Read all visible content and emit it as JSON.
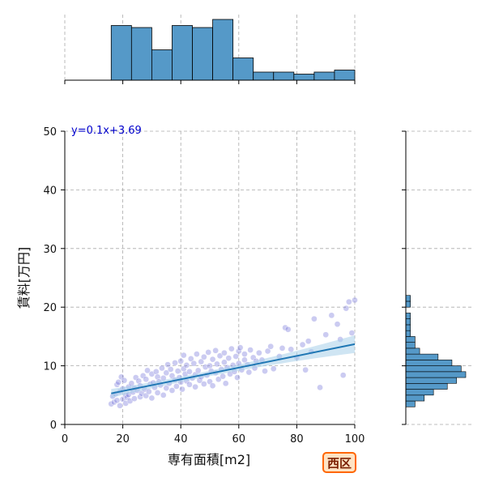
{
  "chart_data": {
    "type": "scatter",
    "xlabel": "専有面積[m2]",
    "ylabel": "賃料[万円]",
    "xlim": [
      0,
      100
    ],
    "ylim": [
      0,
      50
    ],
    "xticks": [
      0,
      20,
      40,
      60,
      80,
      100
    ],
    "yticks": [
      0,
      10,
      20,
      30,
      40,
      50
    ],
    "grid": true,
    "annotation": "y=0.1x+3.69",
    "regression": {
      "slope": 0.1,
      "intercept": 3.69,
      "x_range": [
        16,
        100
      ]
    },
    "colors": {
      "points": "#6b6bd6",
      "regression": "#1f77b4",
      "band": "#a8d0ea",
      "hist": "#5599c8"
    },
    "points": [
      [
        16,
        3.5
      ],
      [
        16.5,
        4.8
      ],
      [
        17,
        3.8
      ],
      [
        17.5,
        5.2
      ],
      [
        18,
        4.1
      ],
      [
        18,
        6.8
      ],
      [
        18.5,
        7.2
      ],
      [
        19,
        3.2
      ],
      [
        19,
        5.6
      ],
      [
        19.5,
        8.1
      ],
      [
        20,
        4.3
      ],
      [
        20,
        6.1
      ],
      [
        20.5,
        7.5
      ],
      [
        21,
        5.0
      ],
      [
        21,
        3.6
      ],
      [
        21.5,
        4.6
      ],
      [
        22,
        6.4
      ],
      [
        22,
        5.1
      ],
      [
        22.5,
        4.0
      ],
      [
        23,
        7.0
      ],
      [
        23.5,
        5.5
      ],
      [
        24,
        6.2
      ],
      [
        24,
        4.4
      ],
      [
        24.5,
        8.0
      ],
      [
        25,
        5.8
      ],
      [
        25.5,
        7.4
      ],
      [
        26,
        4.7
      ],
      [
        26,
        6.6
      ],
      [
        26.5,
        5.3
      ],
      [
        27,
        8.3
      ],
      [
        27.5,
        6.0
      ],
      [
        28,
        4.9
      ],
      [
        28,
        7.7
      ],
      [
        28.5,
        9.2
      ],
      [
        29,
        5.6
      ],
      [
        29.5,
        6.9
      ],
      [
        30,
        8.6
      ],
      [
        30,
        4.5
      ],
      [
        30.5,
        7.1
      ],
      [
        31,
        6.3
      ],
      [
        31.5,
        9.0
      ],
      [
        32,
        5.4
      ],
      [
        32,
        8.1
      ],
      [
        32.5,
        7.3
      ],
      [
        33,
        6.7
      ],
      [
        33.5,
        9.6
      ],
      [
        34,
        5.0
      ],
      [
        34,
        7.9
      ],
      [
        35,
        8.8
      ],
      [
        35,
        6.2
      ],
      [
        35.5,
        10.2
      ],
      [
        36,
        7.0
      ],
      [
        36.5,
        9.4
      ],
      [
        37,
        5.8
      ],
      [
        37,
        8.3
      ],
      [
        38,
        7.6
      ],
      [
        38,
        10.5
      ],
      [
        38.5,
        6.5
      ],
      [
        39,
        9.1
      ],
      [
        39.5,
        8.0
      ],
      [
        40,
        7.2
      ],
      [
        40,
        10.8
      ],
      [
        40.5,
        6.0
      ],
      [
        41,
        9.5
      ],
      [
        41,
        11.8
      ],
      [
        41.5,
        8.6
      ],
      [
        42,
        7.4
      ],
      [
        42,
        10.1
      ],
      [
        43,
        6.8
      ],
      [
        43,
        9.0
      ],
      [
        43.5,
        11.2
      ],
      [
        44,
        7.9
      ],
      [
        44.5,
        10.4
      ],
      [
        45,
        8.5
      ],
      [
        45,
        6.4
      ],
      [
        45.5,
        12.0
      ],
      [
        46,
        9.2
      ],
      [
        46.5,
        7.5
      ],
      [
        47,
        10.7
      ],
      [
        47,
        8.1
      ],
      [
        48,
        11.5
      ],
      [
        48,
        6.9
      ],
      [
        48.5,
        9.8
      ],
      [
        49,
        8.4
      ],
      [
        49.5,
        12.3
      ],
      [
        50,
        7.3
      ],
      [
        50,
        10.0
      ],
      [
        50.5,
        9.1
      ],
      [
        51,
        11.1
      ],
      [
        51,
        6.6
      ],
      [
        52,
        8.8
      ],
      [
        52,
        12.6
      ],
      [
        52.5,
        10.3
      ],
      [
        53,
        7.7
      ],
      [
        53.5,
        11.7
      ],
      [
        54,
        9.4
      ],
      [
        54.5,
        8.2
      ],
      [
        55,
        12.2
      ],
      [
        55,
        10.6
      ],
      [
        55.5,
        7.0
      ],
      [
        56,
        9.7
      ],
      [
        56.5,
        11.3
      ],
      [
        57,
        8.6
      ],
      [
        57.5,
        12.9
      ],
      [
        58,
        10.1
      ],
      [
        58.5,
        9.0
      ],
      [
        59,
        11.6
      ],
      [
        59.5,
        8.0
      ],
      [
        60,
        12.5
      ],
      [
        60,
        10.4
      ],
      [
        60.5,
        13.1
      ],
      [
        61,
        9.3
      ],
      [
        62,
        12.0
      ],
      [
        62,
        11.0
      ],
      [
        63,
        10.2
      ],
      [
        63.5,
        8.9
      ],
      [
        64,
        12.7
      ],
      [
        65,
        11.4
      ],
      [
        65.5,
        9.6
      ],
      [
        66,
        10.8
      ],
      [
        67,
        12.2
      ],
      [
        68,
        11.0
      ],
      [
        69,
        9.1
      ],
      [
        70,
        12.5
      ],
      [
        71,
        13.3
      ],
      [
        72,
        9.5
      ],
      [
        74,
        11.6
      ],
      [
        75,
        13.0
      ],
      [
        76,
        16.5
      ],
      [
        77,
        16.2
      ],
      [
        78,
        12.8
      ],
      [
        80,
        11.4
      ],
      [
        82,
        13.6
      ],
      [
        83,
        9.3
      ],
      [
        84,
        14.2
      ],
      [
        85,
        12.4
      ],
      [
        86,
        18.0
      ],
      [
        88,
        6.3
      ],
      [
        90,
        15.3
      ],
      [
        92,
        18.6
      ],
      [
        94,
        17.1
      ],
      [
        95,
        14.5
      ],
      [
        96,
        8.4
      ],
      [
        97,
        19.8
      ],
      [
        98,
        20.9
      ],
      [
        99,
        15.6
      ],
      [
        100,
        21.2
      ]
    ],
    "x_hist": {
      "bin_edges": [
        16,
        23,
        30,
        37,
        44,
        51,
        58,
        65,
        72,
        79,
        86,
        93,
        100
      ],
      "counts": [
        27,
        26,
        15,
        27,
        26,
        30,
        11,
        4,
        4,
        3,
        4,
        5
      ]
    },
    "y_hist": {
      "bin_edges": [
        3,
        4,
        5,
        6,
        7,
        8,
        9,
        10,
        11,
        12,
        13,
        14,
        15,
        16,
        17,
        18,
        19,
        20,
        21,
        22
      ],
      "counts": [
        2,
        4,
        6,
        9,
        11,
        13,
        12,
        10,
        7,
        3,
        2,
        2,
        1,
        1,
        1,
        1,
        0,
        1,
        1
      ]
    }
  },
  "region_badge": "西区"
}
